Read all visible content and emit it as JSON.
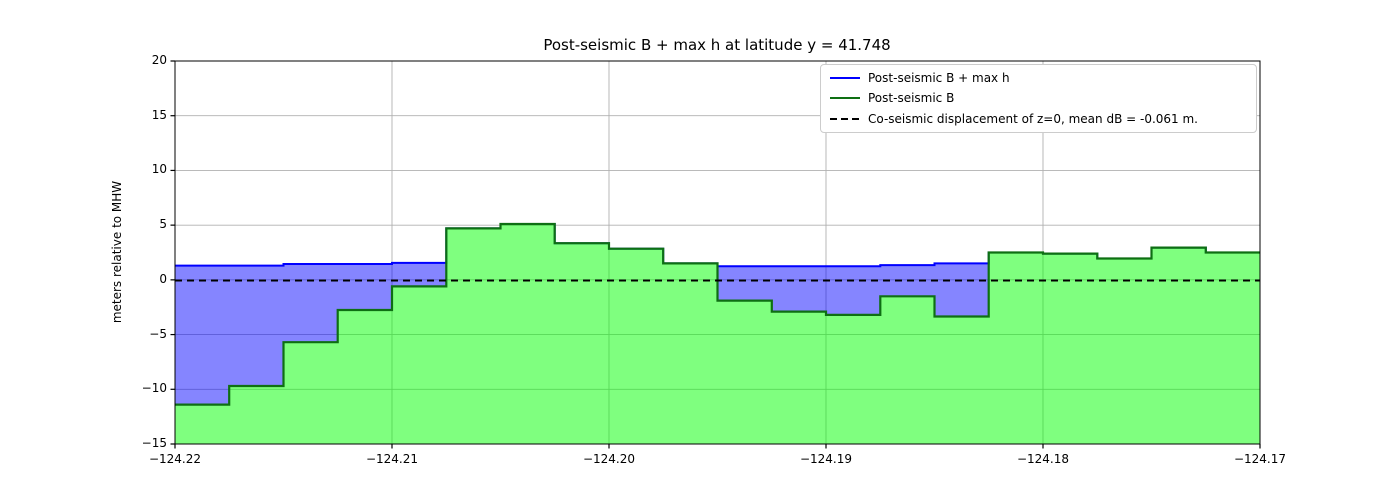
{
  "chart_data": {
    "type": "area",
    "title": "Post-seismic B + max h at latitude y = 41.748",
    "xlabel": "",
    "ylabel": "meters relative to MHW",
    "xlim": [
      -124.22,
      -124.17
    ],
    "ylim": [
      -15,
      20
    ],
    "grid": true,
    "legend_position": "upper right",
    "x_tick_values": [
      -124.22,
      -124.21,
      -124.2,
      -124.19,
      -124.18,
      -124.17
    ],
    "x_tick_labels": [
      "−124.22",
      "−124.21",
      "−124.20",
      "−124.19",
      "−124.18",
      "−124.17"
    ],
    "y_tick_values": [
      -15,
      -10,
      -5,
      0,
      5,
      10,
      15,
      20
    ],
    "y_tick_labels": [
      "−15",
      "−10",
      "−5",
      "0",
      "5",
      "10",
      "15",
      "20"
    ],
    "step_edges_lon": [
      -124.22,
      -124.2175,
      -124.215,
      -124.2125,
      -124.21,
      -124.2075,
      -124.205,
      -124.2025,
      -124.2,
      -124.1975,
      -124.195,
      -124.1925,
      -124.19,
      -124.1875,
      -124.185,
      -124.1825,
      -124.18,
      -124.1775,
      -124.175,
      -124.1725,
      -124.17
    ],
    "series": [
      {
        "name": "Post-seismic B + max h",
        "type": "step",
        "line_color": "#0000ff",
        "fill_color": "rgba(0,0,255,0.48)",
        "values": [
          1.3,
          1.3,
          1.45,
          1.45,
          1.55,
          4.7,
          5.1,
          3.35,
          2.85,
          1.5,
          1.25,
          1.25,
          1.25,
          1.35,
          1.5,
          2.5,
          2.4,
          1.95,
          2.95,
          2.5
        ]
      },
      {
        "name": "Post-seismic B",
        "type": "step",
        "line_color": "#0e6f13",
        "fill_color": "rgba(0,255,0,0.5)",
        "values": [
          -11.4,
          -9.7,
          -5.7,
          -2.75,
          -0.6,
          4.7,
          5.1,
          3.35,
          2.85,
          1.5,
          -1.9,
          -2.9,
          -3.2,
          -1.5,
          -3.35,
          2.5,
          2.4,
          1.95,
          2.95,
          2.5
        ]
      },
      {
        "name": "Co-seismic displacement of z=0, mean dB = -0.061 m.",
        "type": "hline",
        "line_color": "#000000",
        "line_style": "dashed",
        "y": -0.061
      }
    ],
    "grid_color": "#b0b0b0",
    "spine_color": "#000000"
  }
}
